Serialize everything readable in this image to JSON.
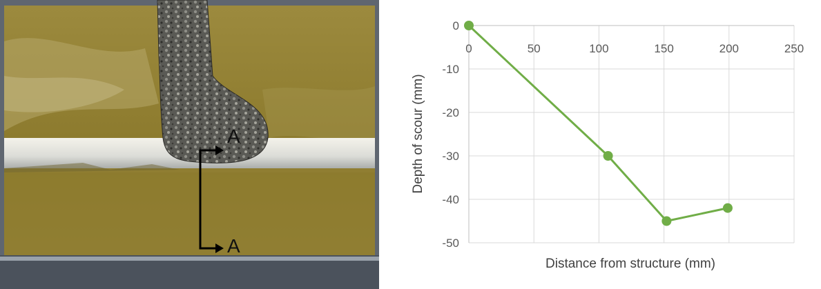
{
  "photo": {
    "marker_top": "A",
    "marker_bottom": "A"
  },
  "chart_data": {
    "type": "line",
    "x": [
      0,
      107,
      152,
      199
    ],
    "series": [
      {
        "values": [
          0,
          -30,
          -45,
          -42
        ]
      }
    ],
    "xlabel": "Distance from structure (mm)",
    "ylabel": "Depth of scour  (mm)",
    "xlim": [
      0,
      250
    ],
    "ylim": [
      -50,
      0
    ],
    "x_ticks": [
      "0",
      "50",
      "100",
      "150",
      "200",
      "250"
    ],
    "y_ticks": [
      "0",
      "-10",
      "-20",
      "-30",
      "-40",
      "-50"
    ],
    "x_tick_position": "top",
    "grid": true,
    "legend": "none",
    "colors": {
      "series": "#70ad47",
      "grid": "#d9d9d9",
      "axis": "#bfbfbf",
      "text": "#595959"
    }
  }
}
